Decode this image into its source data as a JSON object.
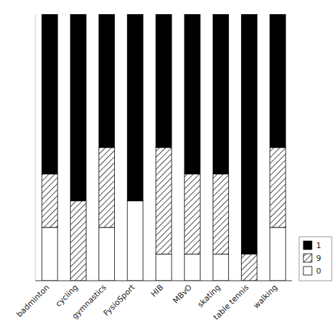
{
  "chart_data": {
    "type": "bar",
    "stacked": true,
    "categories": [
      "badminton",
      "cycling",
      "gymnastics",
      "FysioSport",
      "HIB",
      "MBvO",
      "skating",
      "table tennis",
      "walking"
    ],
    "series": [
      {
        "name": "0",
        "color": "#ffffff",
        "values": [
          2,
          0,
          2,
          3,
          1,
          1,
          1,
          0,
          2
        ]
      },
      {
        "name": "9",
        "color": "#ffffff",
        "values": [
          2,
          3,
          3,
          0,
          4,
          3,
          3,
          1,
          3
        ]
      },
      {
        "name": "1",
        "color": "#000000",
        "values": [
          6,
          7,
          5,
          7,
          5,
          6,
          6,
          9,
          5
        ]
      }
    ],
    "ylim": [
      0,
      10
    ],
    "tick_labels": "x",
    "grid": false,
    "legend": "lower right"
  }
}
